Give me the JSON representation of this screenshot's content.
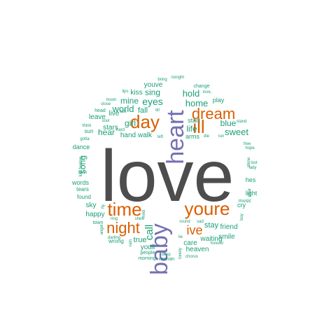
{
  "chart_data": {
    "type": "wordcloud",
    "title": "",
    "colors": {
      "large": "#4d4d4d",
      "purple": "#7570b3",
      "orange": "#d95f02",
      "green": "#1b9e77"
    },
    "words": [
      {
        "text": "love",
        "color": "large"
      },
      {
        "text": "heart",
        "color": "purple"
      },
      {
        "text": "baby",
        "color": "purple"
      },
      {
        "text": "day",
        "color": "orange"
      },
      {
        "text": "dream",
        "color": "orange"
      },
      {
        "text": "ill",
        "color": "orange"
      },
      {
        "text": "time",
        "color": "orange"
      },
      {
        "text": "youre",
        "color": "orange"
      },
      {
        "text": "night",
        "color": "orange"
      },
      {
        "text": "ive",
        "color": "orange"
      },
      {
        "text": "call",
        "color": "green"
      },
      {
        "text": "sing",
        "color": "green"
      },
      {
        "text": "eyes",
        "color": "green"
      },
      {
        "text": "mine",
        "color": "green"
      },
      {
        "text": "world",
        "color": "green"
      },
      {
        "text": "hold",
        "color": "green"
      },
      {
        "text": "home",
        "color": "green"
      },
      {
        "text": "life",
        "color": "green"
      },
      {
        "text": "blue",
        "color": "green"
      },
      {
        "text": "sweet",
        "color": "green"
      },
      {
        "text": "girl",
        "color": "green"
      },
      {
        "text": "hear",
        "color": "green"
      },
      {
        "text": "stars",
        "color": "green"
      },
      {
        "text": "song",
        "color": "green"
      },
      {
        "text": "stay",
        "color": "green"
      },
      {
        "text": "true",
        "color": "green"
      },
      {
        "text": "friend",
        "color": "green"
      },
      {
        "text": "care",
        "color": "green"
      },
      {
        "text": "smile",
        "color": "green"
      },
      {
        "text": "heaven",
        "color": "green"
      },
      {
        "text": "waiting",
        "color": "green"
      },
      {
        "text": "youll",
        "color": "green"
      },
      {
        "text": "hand",
        "color": "green"
      },
      {
        "text": "walk",
        "color": "green"
      },
      {
        "text": "fall",
        "color": "green"
      },
      {
        "text": "kiss",
        "color": "green"
      },
      {
        "text": "youve",
        "color": "green"
      },
      {
        "text": "live",
        "color": "green"
      },
      {
        "text": "leave",
        "color": "green"
      },
      {
        "text": "sky",
        "color": "green"
      },
      {
        "text": "happy",
        "color": "green"
      },
      {
        "text": "dance",
        "color": "green"
      },
      {
        "text": "words",
        "color": "green"
      },
      {
        "text": "play",
        "color": "green"
      },
      {
        "text": "start",
        "color": "green"
      },
      {
        "text": "arms",
        "color": "green"
      },
      {
        "text": "cry",
        "color": "green"
      },
      {
        "text": "light",
        "color": "green"
      },
      {
        "text": "hes",
        "color": "green"
      },
      {
        "text": "music",
        "color": "green"
      },
      {
        "text": "tears",
        "color": "green"
      },
      {
        "text": "found",
        "color": "green"
      },
      {
        "text": "town",
        "color": "green"
      },
      {
        "text": "wrong",
        "color": "green"
      },
      {
        "text": "darling",
        "color": "green"
      },
      {
        "text": "people",
        "color": "green"
      },
      {
        "text": "morning",
        "color": "green"
      },
      {
        "text": "woman",
        "color": "green"
      },
      {
        "text": "deep",
        "color": "green"
      },
      {
        "text": "lonely",
        "color": "green"
      },
      {
        "text": "chorus",
        "color": "green"
      },
      {
        "text": "forever",
        "color": "green"
      },
      {
        "text": "round",
        "color": "green"
      },
      {
        "text": "sad",
        "color": "green"
      },
      {
        "text": "lie",
        "color": "green"
      },
      {
        "text": "shes",
        "color": "green"
      },
      {
        "text": "mind",
        "color": "green"
      },
      {
        "text": "rain",
        "color": "green"
      },
      {
        "text": "ring",
        "color": "green"
      },
      {
        "text": "angel",
        "color": "green"
      },
      {
        "text": "fly",
        "color": "green"
      },
      {
        "text": "boy",
        "color": "green"
      },
      {
        "text": "dear",
        "color": "green"
      },
      {
        "text": "lady",
        "color": "green"
      },
      {
        "text": "lost",
        "color": "green"
      },
      {
        "text": "shine",
        "color": "green"
      },
      {
        "text": "hope",
        "color": "green"
      },
      {
        "text": "free",
        "color": "green"
      },
      {
        "text": "change",
        "color": "green"
      },
      {
        "text": "love,",
        "color": "green"
      },
      {
        "text": "tonight",
        "color": "green"
      },
      {
        "text": "bring",
        "color": "green"
      },
      {
        "text": "lips",
        "color": "green"
      },
      {
        "text": "moon",
        "color": "green"
      },
      {
        "text": "close",
        "color": "green"
      },
      {
        "text": "head",
        "color": "green"
      },
      {
        "text": "talk",
        "color": "green"
      },
      {
        "text": "till",
        "color": "green"
      },
      {
        "text": "soul",
        "color": "green"
      },
      {
        "text": "hard",
        "color": "green"
      },
      {
        "text": "think",
        "color": "green"
      },
      {
        "text": "sun",
        "color": "green"
      },
      {
        "text": "gotta",
        "color": "green"
      },
      {
        "text": "left",
        "color": "green"
      },
      {
        "text": "die",
        "color": "green"
      },
      {
        "text": "run",
        "color": "green"
      },
      {
        "text": "stand",
        "color": "green"
      },
      {
        "text": "lost feeling",
        "color": "green"
      },
      {
        "text": "lover",
        "color": "green"
      }
    ]
  }
}
